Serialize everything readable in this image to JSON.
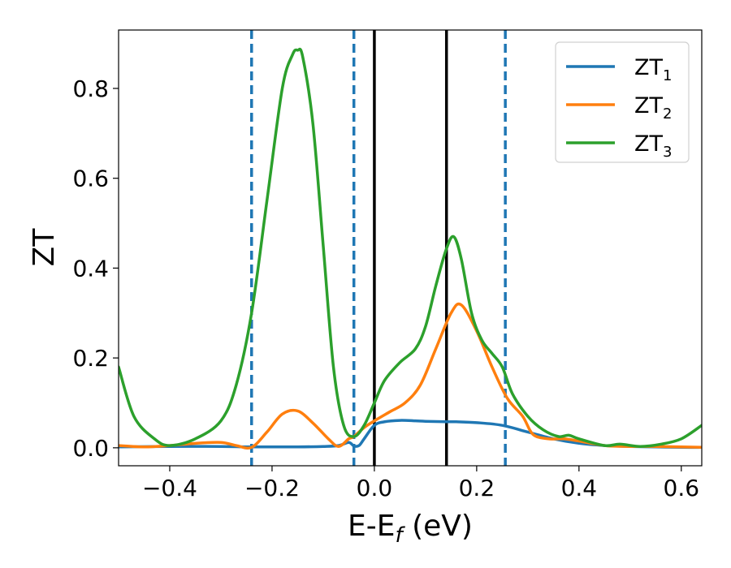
{
  "chart_data": {
    "type": "line",
    "title": "",
    "xlabel": "E-E",
    "xlabel_sub": "f",
    "xlabel_unit": " (eV)",
    "ylabel": "ZT",
    "xlim": [
      -0.5,
      0.64
    ],
    "ylim": [
      -0.04,
      0.93
    ],
    "xticks": [
      -0.4,
      -0.2,
      0.0,
      0.2,
      0.4,
      0.6
    ],
    "xtick_labels": [
      "−0.4",
      "−0.2",
      "0.0",
      "0.2",
      "0.4",
      "0.6"
    ],
    "yticks": [
      0.0,
      0.2,
      0.4,
      0.6,
      0.8
    ],
    "ytick_labels": [
      "0.0",
      "0.2",
      "0.4",
      "0.6",
      "0.8"
    ],
    "grid": false,
    "legend": "top-right",
    "vlines_dashed": {
      "x": [
        -0.24,
        -0.04,
        0.256
      ],
      "color": "#1f77b4"
    },
    "vlines_solid": {
      "x": [
        0.0,
        0.141
      ],
      "color": "#000000"
    },
    "series": [
      {
        "name": "ZT",
        "sub": "1",
        "color": "#1f77b4",
        "x": [
          -0.5,
          -0.4,
          -0.3,
          -0.25,
          -0.2,
          -0.15,
          -0.1,
          -0.07,
          -0.05,
          -0.04,
          -0.03,
          -0.02,
          0.0,
          0.02,
          0.05,
          0.08,
          0.1,
          0.14,
          0.16,
          0.2,
          0.25,
          0.3,
          0.35,
          0.4,
          0.45,
          0.5,
          0.55,
          0.6,
          0.64
        ],
        "y": [
          0.002,
          0.003,
          0.003,
          0.002,
          0.002,
          0.002,
          0.003,
          0.005,
          0.012,
          0.004,
          0.005,
          0.02,
          0.05,
          0.058,
          0.061,
          0.06,
          0.059,
          0.058,
          0.058,
          0.056,
          0.05,
          0.035,
          0.02,
          0.01,
          0.005,
          0.003,
          0.002,
          0.001,
          0.001
        ]
      },
      {
        "name": "ZT",
        "sub": "2",
        "color": "#ff7f0e",
        "x": [
          -0.5,
          -0.45,
          -0.4,
          -0.35,
          -0.3,
          -0.27,
          -0.24,
          -0.21,
          -0.18,
          -0.15,
          -0.12,
          -0.09,
          -0.07,
          -0.05,
          -0.04,
          -0.02,
          0.0,
          0.03,
          0.06,
          0.09,
          0.12,
          0.15,
          0.17,
          0.2,
          0.23,
          0.26,
          0.29,
          0.31,
          0.34,
          0.37,
          0.4,
          0.45,
          0.5,
          0.55,
          0.6,
          0.64
        ],
        "y": [
          0.005,
          0.002,
          0.005,
          0.01,
          0.012,
          0.005,
          0.001,
          0.035,
          0.075,
          0.082,
          0.055,
          0.02,
          0.003,
          0.02,
          0.025,
          0.045,
          0.06,
          0.08,
          0.1,
          0.14,
          0.22,
          0.3,
          0.318,
          0.26,
          0.18,
          0.11,
          0.07,
          0.03,
          0.02,
          0.02,
          0.015,
          0.005,
          0.003,
          0.003,
          0.002,
          0.001
        ]
      },
      {
        "name": "ZT",
        "sub": "3",
        "color": "#2ca02c",
        "x": [
          -0.5,
          -0.47,
          -0.43,
          -0.4,
          -0.35,
          -0.3,
          -0.27,
          -0.24,
          -0.21,
          -0.18,
          -0.16,
          -0.15,
          -0.14,
          -0.12,
          -0.1,
          -0.08,
          -0.06,
          -0.04,
          -0.02,
          0.0,
          0.02,
          0.05,
          0.08,
          0.1,
          0.12,
          0.14,
          0.155,
          0.17,
          0.19,
          0.21,
          0.23,
          0.25,
          0.27,
          0.3,
          0.33,
          0.36,
          0.38,
          0.4,
          0.45,
          0.48,
          0.52,
          0.56,
          0.6,
          0.64
        ],
        "y": [
          0.18,
          0.07,
          0.02,
          0.005,
          0.02,
          0.06,
          0.14,
          0.3,
          0.55,
          0.8,
          0.875,
          0.885,
          0.87,
          0.72,
          0.45,
          0.18,
          0.05,
          0.025,
          0.05,
          0.1,
          0.15,
          0.19,
          0.22,
          0.27,
          0.36,
          0.44,
          0.47,
          0.42,
          0.3,
          0.24,
          0.21,
          0.18,
          0.12,
          0.07,
          0.04,
          0.025,
          0.028,
          0.02,
          0.005,
          0.008,
          0.003,
          0.008,
          0.02,
          0.05
        ]
      }
    ]
  }
}
